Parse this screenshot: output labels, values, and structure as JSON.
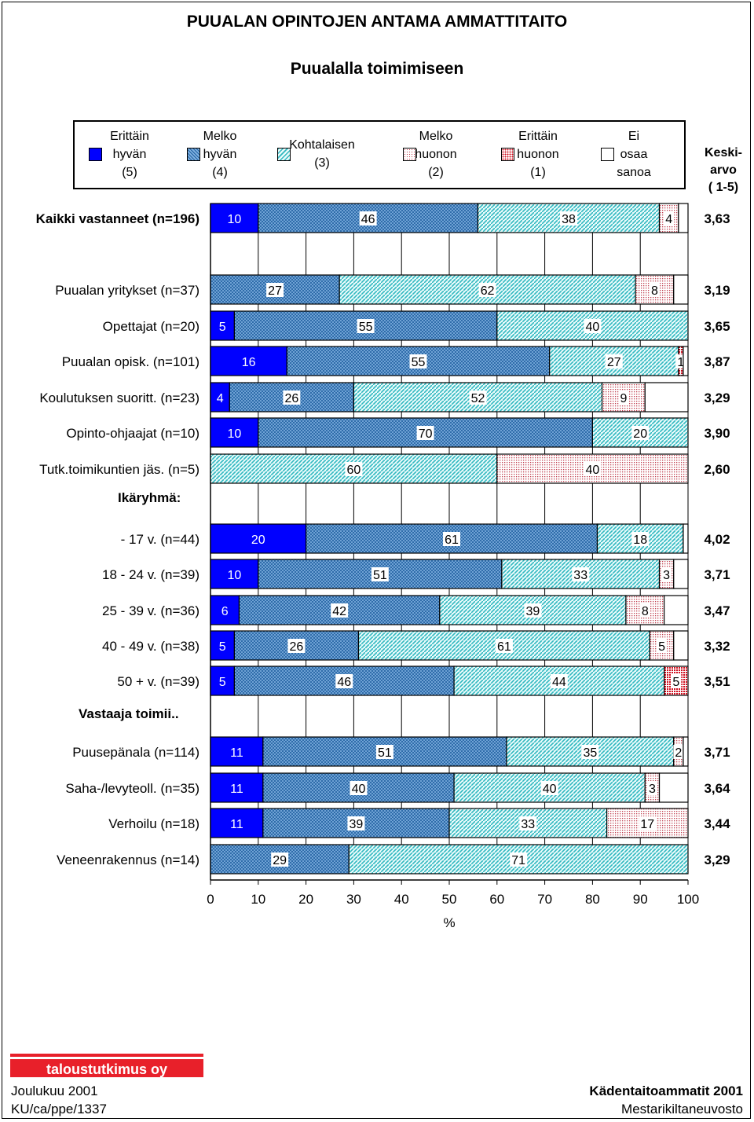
{
  "header": {
    "title": "PUUALAN OPINTOJEN ANTAMA AMMATTITAITO",
    "subtitle": "Puualalla toimimiseen"
  },
  "legend": [
    {
      "key": "c5",
      "line1": "Erittäin",
      "line2": "hyvän",
      "line3": "(5)",
      "color": "#0000ff",
      "pattern": "solid"
    },
    {
      "key": "c4",
      "line1": "Melko",
      "line2": "hyvän",
      "line3": "(4)",
      "color": "#4f8fd0",
      "pattern": "cross"
    },
    {
      "key": "c3",
      "line1": "Kohtalaisen",
      "line2": "(3)",
      "line3": "",
      "color": "#33cccc",
      "pattern": "diag"
    },
    {
      "key": "c2",
      "line1": "Melko",
      "line2": "huonon",
      "line3": "(2)",
      "color": "#e0a0a0",
      "pattern": "dots"
    },
    {
      "key": "c1",
      "line1": "Erittäin",
      "line2": "huonon",
      "line3": "(1)",
      "color": "#d01010",
      "pattern": "dense"
    },
    {
      "key": "c0",
      "line1": "Ei",
      "line2": "osaa",
      "line3": "sanoa",
      "color": "#ffffff",
      "pattern": "none"
    }
  ],
  "mean_header": {
    "line1": "Keski-",
    "line2": "arvo",
    "line3": "( 1-5)"
  },
  "chart_data": {
    "type": "bar",
    "orientation": "horizontal-stacked-100",
    "xlabel": "%",
    "xlim": [
      0,
      100
    ],
    "xticks": [
      "0",
      "10",
      "20",
      "30",
      "40",
      "50",
      "60",
      "70",
      "80",
      "90",
      "100"
    ],
    "series_order": [
      "c5",
      "c4",
      "c3",
      "c2",
      "c1",
      "c0"
    ],
    "groups": [
      "Ikäryhmä:",
      "Vastaaja toimii.."
    ],
    "rows": [
      {
        "label": "Kaikki vastanneet (n=196)",
        "bold": true,
        "values": [
          10,
          46,
          38,
          4,
          0,
          2
        ],
        "labels": [
          "10",
          "46",
          "38",
          "4",
          "",
          ""
        ],
        "mean": "3,63"
      },
      {
        "label": "Puualan yritykset (n=37)",
        "values": [
          0,
          27,
          62,
          8,
          0,
          3
        ],
        "labels": [
          "",
          "27",
          "62",
          "8",
          "",
          ""
        ],
        "mean": "3,19"
      },
      {
        "label": "Opettajat (n=20)",
        "values": [
          5,
          55,
          40,
          0,
          0,
          0
        ],
        "labels": [
          "5",
          "55",
          "40",
          "",
          "",
          ""
        ],
        "mean": "3,65"
      },
      {
        "label": "Puualan opisk. (n=101)",
        "values": [
          16,
          55,
          27,
          0,
          1,
          1
        ],
        "labels": [
          "16",
          "55",
          "27",
          "",
          "1",
          ""
        ],
        "mean": "3,87"
      },
      {
        "label": "Koulutuksen suoritt. (n=23)",
        "values": [
          4,
          26,
          52,
          9,
          0,
          9
        ],
        "labels": [
          "4",
          "26",
          "52",
          "9",
          "",
          ""
        ],
        "mean": "3,29"
      },
      {
        "label": "Opinto-ohjaajat (n=10)",
        "values": [
          10,
          70,
          20,
          0,
          0,
          0
        ],
        "labels": [
          "10",
          "70",
          "20",
          "",
          "",
          ""
        ],
        "mean": "3,90"
      },
      {
        "label": "Tutk.toimikuntien jäs. (n=5)",
        "values": [
          0,
          0,
          60,
          40,
          0,
          0
        ],
        "labels": [
          "",
          "",
          "60",
          "40",
          "",
          ""
        ],
        "mean": "2,60"
      },
      {
        "label": "- 17 v.  (n=44)",
        "group": "Ikäryhmä:",
        "values": [
          20,
          61,
          18,
          0,
          0,
          1
        ],
        "labels": [
          "20",
          "61",
          "18",
          "",
          "",
          ""
        ],
        "mean": "4,02"
      },
      {
        "label": "18 - 24 v. (n=39)",
        "values": [
          10,
          51,
          33,
          3,
          0,
          3
        ],
        "labels": [
          "10",
          "51",
          "33",
          "3",
          "",
          ""
        ],
        "mean": "3,71"
      },
      {
        "label": "25 - 39 v. (n=36)",
        "values": [
          6,
          42,
          39,
          8,
          0,
          5
        ],
        "labels": [
          "6",
          "42",
          "39",
          "8",
          "",
          ""
        ],
        "mean": "3,47"
      },
      {
        "label": "40 - 49 v. (n=38)",
        "values": [
          5,
          26,
          61,
          5,
          0,
          3
        ],
        "labels": [
          "5",
          "26",
          "61",
          "5",
          "",
          ""
        ],
        "mean": "3,32"
      },
      {
        "label": "50 + v.  (n=39)",
        "values": [
          5,
          46,
          44,
          0,
          5,
          0
        ],
        "labels": [
          "5",
          "46",
          "44",
          "",
          "5",
          ""
        ],
        "mean": "3,51"
      },
      {
        "label": "Puusepänala (n=114)",
        "group": "Vastaaja toimii..",
        "values": [
          11,
          51,
          35,
          2,
          0,
          1
        ],
        "labels": [
          "11",
          "51",
          "35",
          "2",
          "",
          ""
        ],
        "mean": "3,71"
      },
      {
        "label": "Saha-/levyteoll. (n=35)",
        "values": [
          11,
          40,
          40,
          3,
          0,
          6
        ],
        "labels": [
          "11",
          "40",
          "40",
          "3",
          "",
          ""
        ],
        "mean": "3,64"
      },
      {
        "label": "Verhoilu (n=18)",
        "values": [
          11,
          39,
          33,
          17,
          0,
          0
        ],
        "labels": [
          "11",
          "39",
          "33",
          "17",
          "",
          ""
        ],
        "mean": "3,44"
      },
      {
        "label": "Veneenrakennus (n=14)",
        "values": [
          0,
          29,
          71,
          0,
          0,
          0
        ],
        "labels": [
          "",
          "29",
          "71",
          "",
          "",
          ""
        ],
        "mean": "3,29"
      }
    ]
  },
  "footer": {
    "logo_text": "taloustutkimus oy",
    "date": "Joulukuu 2001",
    "code": "KU/ca/ppe/1337",
    "right_title": "Kädentaitoammatit 2001",
    "right_sub": "Mestarikiltaneuvosto"
  }
}
